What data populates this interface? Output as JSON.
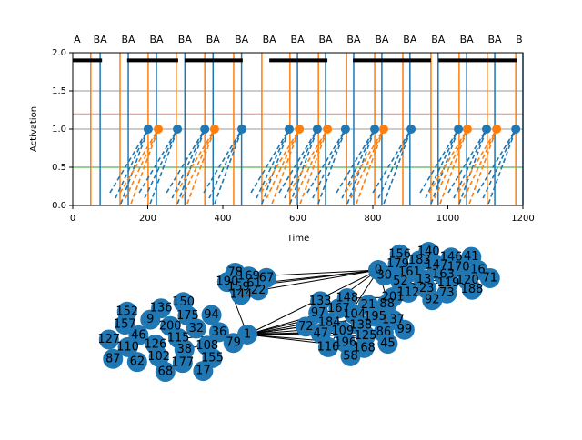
{
  "chart_data": {
    "type": "line",
    "x_label": "Time",
    "y_label": "Activation",
    "xlim": [
      0,
      1200
    ],
    "ylim": [
      0,
      2
    ],
    "xticks": [
      0,
      200,
      400,
      600,
      800,
      1000,
      1200
    ],
    "yticks": [
      {
        "value": 0,
        "label": "0.0"
      },
      {
        "value": 0.5,
        "label": "0.5"
      },
      {
        "value": 1,
        "label": "1.0"
      },
      {
        "value": 1.5,
        "label": "1.5"
      },
      {
        "value": 2,
        "label": "2.0"
      }
    ],
    "event_labels": [
      {
        "x": 12,
        "label": "A"
      },
      {
        "x": 73,
        "label": "BA"
      },
      {
        "x": 148,
        "label": "BA"
      },
      {
        "x": 223,
        "label": "BA"
      },
      {
        "x": 299,
        "label": "BA"
      },
      {
        "x": 374,
        "label": "BA"
      },
      {
        "x": 450,
        "label": "BA"
      },
      {
        "x": 524,
        "label": "BA"
      },
      {
        "x": 599,
        "label": "BA"
      },
      {
        "x": 674,
        "label": "BA"
      },
      {
        "x": 749,
        "label": "BA"
      },
      {
        "x": 824,
        "label": "BA"
      },
      {
        "x": 899,
        "label": "BA"
      },
      {
        "x": 974,
        "label": "BA"
      },
      {
        "x": 1050,
        "label": "BA"
      },
      {
        "x": 1125,
        "label": "BA"
      },
      {
        "x": 1190,
        "label": "B"
      }
    ],
    "hlines": [
      {
        "y": 0.5,
        "color": "#2ca02c"
      },
      {
        "y": 1.0,
        "color": "#999999"
      },
      {
        "y": 1.2,
        "color": "#ff7f7f"
      },
      {
        "y": 1.5,
        "color": "#999999"
      }
    ],
    "vlines": [
      {
        "x": 48,
        "color": "#ff7f0e"
      },
      {
        "x": 73,
        "color": "#1f77b4"
      },
      {
        "x": 126,
        "color": "#ff7f0e"
      },
      {
        "x": 148,
        "color": "#1f77b4"
      },
      {
        "x": 201,
        "color": "#ff7f0e"
      },
      {
        "x": 223,
        "color": "#1f77b4"
      },
      {
        "x": 276,
        "color": "#ff7f0e"
      },
      {
        "x": 299,
        "color": "#1f77b4"
      },
      {
        "x": 352,
        "color": "#ff7f0e"
      },
      {
        "x": 374,
        "color": "#1f77b4"
      },
      {
        "x": 429,
        "color": "#ff7f0e"
      },
      {
        "x": 450,
        "color": "#1f77b4"
      },
      {
        "x": 504,
        "color": "#ff7f0e"
      },
      {
        "x": 579,
        "color": "#ff7f0e"
      },
      {
        "x": 599,
        "color": "#1f77b4"
      },
      {
        "x": 655,
        "color": "#ff7f0e"
      },
      {
        "x": 674,
        "color": "#1f77b4"
      },
      {
        "x": 730,
        "color": "#ff7f0e"
      },
      {
        "x": 749,
        "color": "#1f77b4"
      },
      {
        "x": 805,
        "color": "#ff7f0e"
      },
      {
        "x": 824,
        "color": "#1f77b4"
      },
      {
        "x": 880,
        "color": "#ff7f0e"
      },
      {
        "x": 899,
        "color": "#1f77b4"
      },
      {
        "x": 955,
        "color": "#ff7f0e"
      },
      {
        "x": 974,
        "color": "#1f77b4"
      },
      {
        "x": 1030,
        "color": "#ff7f0e"
      },
      {
        "x": 1050,
        "color": "#1f77b4"
      },
      {
        "x": 1105,
        "color": "#ff7f0e"
      },
      {
        "x": 1125,
        "color": "#1f77b4"
      },
      {
        "x": 1181,
        "color": "#ff7f0e"
      },
      {
        "x": 1200,
        "color": "#1f77b4"
      }
    ],
    "segments": {
      "y": 1.9,
      "color": "#000000",
      "ranges": [
        [
          0,
          78
        ],
        [
          145,
          281
        ],
        [
          298,
          453
        ],
        [
          524,
          679
        ],
        [
          747,
          955
        ],
        [
          975,
          1183
        ]
      ]
    },
    "markers": {
      "y": 1.0,
      "points": [
        {
          "x": 201,
          "color": "#1f77b4"
        },
        {
          "x": 228,
          "color": "#ff7f0e"
        },
        {
          "x": 279,
          "color": "#1f77b4"
        },
        {
          "x": 352,
          "color": "#1f77b4"
        },
        {
          "x": 378,
          "color": "#ff7f0e"
        },
        {
          "x": 451,
          "color": "#1f77b4"
        },
        {
          "x": 577,
          "color": "#1f77b4"
        },
        {
          "x": 604,
          "color": "#ff7f0e"
        },
        {
          "x": 652,
          "color": "#1f77b4"
        },
        {
          "x": 679,
          "color": "#ff7f0e"
        },
        {
          "x": 727,
          "color": "#1f77b4"
        },
        {
          "x": 805,
          "color": "#1f77b4"
        },
        {
          "x": 829,
          "color": "#ff7f0e"
        },
        {
          "x": 902,
          "color": "#1f77b4"
        },
        {
          "x": 1028,
          "color": "#1f77b4"
        },
        {
          "x": 1052,
          "color": "#ff7f0e"
        },
        {
          "x": 1103,
          "color": "#1f77b4"
        },
        {
          "x": 1130,
          "color": "#ff7f0e"
        },
        {
          "x": 1181,
          "color": "#1f77b4"
        }
      ]
    }
  },
  "network": {
    "node_color": "#1f77b4",
    "groups": [
      [
        "115",
        "126",
        "200",
        "38",
        "46",
        "32",
        "102",
        "9",
        "108",
        "110",
        "175",
        "177",
        "157",
        "36",
        "62",
        "136",
        "155",
        "127",
        "94",
        "68",
        "152",
        "79",
        "87",
        "150",
        "17"
      ],
      [
        "61",
        "159",
        "169",
        "22",
        "190",
        "67",
        "144",
        "78"
      ],
      [
        "138",
        "109",
        "104",
        "125",
        "184",
        "195",
        "196",
        "167",
        "86",
        "47",
        "21",
        "168",
        "97",
        "137",
        "116",
        "148",
        "45",
        "72",
        "88",
        "58",
        "133",
        "99"
      ],
      [
        "163",
        "13",
        "147",
        "119",
        "161",
        "170",
        "23",
        "183",
        "120",
        "52",
        "146",
        "73",
        "179",
        "16",
        "112",
        "140",
        "188",
        "30",
        "41",
        "92",
        "156",
        "71"
      ],
      [
        "1"
      ],
      [
        "0"
      ],
      [
        "201"
      ]
    ],
    "edges": [
      [
        4,
        0,
        2,
        0
      ],
      [
        4,
        0,
        2,
        1
      ],
      [
        4,
        0,
        2,
        2
      ],
      [
        4,
        0,
        2,
        3
      ],
      [
        4,
        0,
        2,
        4
      ],
      [
        4,
        0,
        2,
        5
      ],
      [
        4,
        0,
        2,
        6
      ],
      [
        4,
        0,
        2,
        7
      ],
      [
        4,
        0,
        2,
        8
      ],
      [
        4,
        0,
        2,
        9
      ],
      [
        4,
        0,
        2,
        10
      ],
      [
        4,
        0,
        2,
        11
      ],
      [
        4,
        0,
        0,
        0
      ],
      [
        4,
        0,
        0,
        3
      ],
      [
        4,
        0,
        1,
        4
      ],
      [
        4,
        0,
        5,
        0
      ],
      [
        5,
        0,
        1,
        0
      ],
      [
        5,
        0,
        1,
        1
      ],
      [
        5,
        0,
        1,
        2
      ],
      [
        5,
        0,
        1,
        3
      ],
      [
        5,
        0,
        2,
        12
      ],
      [
        5,
        0,
        2,
        13
      ],
      [
        5,
        0,
        2,
        14
      ],
      [
        5,
        0,
        3,
        0
      ],
      [
        5,
        0,
        3,
        1
      ],
      [
        5,
        0,
        3,
        2
      ],
      [
        5,
        0,
        3,
        3
      ],
      [
        5,
        0,
        3,
        4
      ],
      [
        5,
        0,
        3,
        5
      ],
      [
        5,
        0,
        3,
        6
      ],
      [
        6,
        0,
        3,
        10
      ],
      [
        6,
        0,
        3,
        11
      ],
      [
        6,
        0,
        3,
        12
      ],
      [
        6,
        0,
        3,
        13
      ],
      [
        6,
        0,
        3,
        14
      ],
      [
        6,
        0,
        3,
        15
      ],
      [
        6,
        0,
        2,
        15
      ],
      [
        6,
        0,
        2,
        16
      ],
      [
        6,
        0,
        2,
        17
      ],
      [
        6,
        0,
        2,
        18
      ]
    ]
  }
}
